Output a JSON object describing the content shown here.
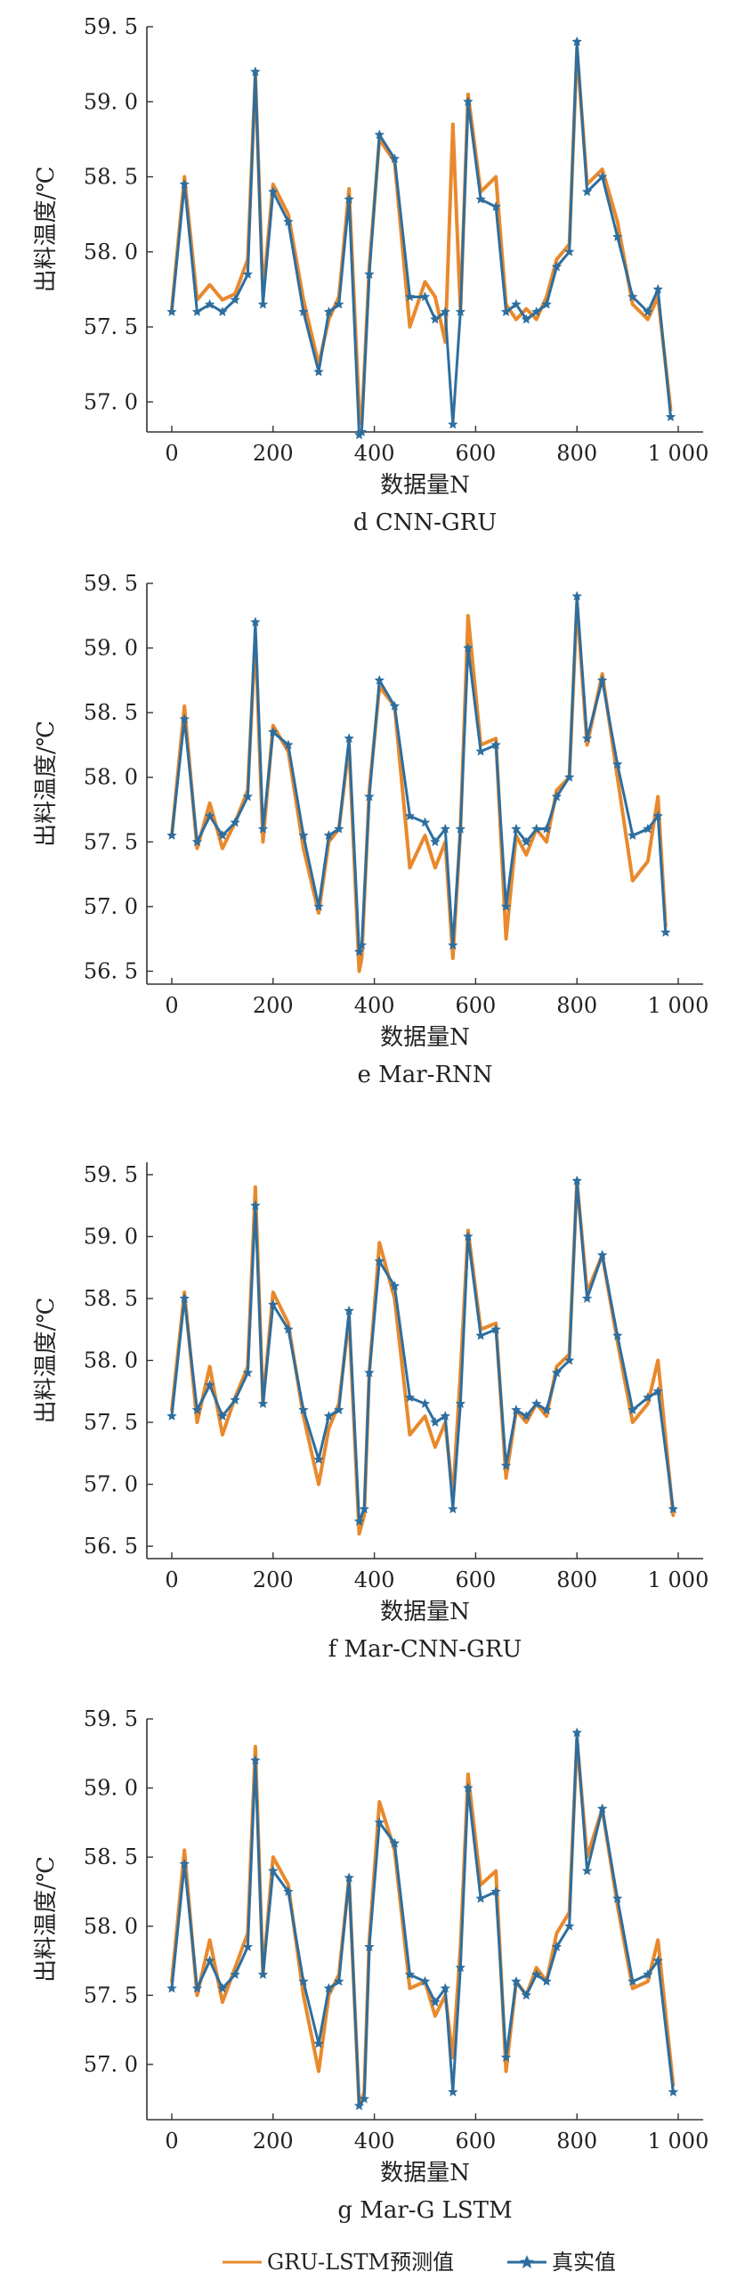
{
  "colors": {
    "predicted": "#E8892C",
    "actual": "#2E6E9E",
    "axis": "#333333",
    "text": "#222222"
  },
  "legend": {
    "predicted_label": "GRU-LSTM预测值",
    "actual_label": "真实值"
  },
  "chart_data": [
    {
      "type": "line",
      "caption": "d  CNN-GRU",
      "xlabel": "数据量N",
      "ylabel": "出料温度/℃",
      "xlim": [
        0,
        1000
      ],
      "ylim": [
        56.8,
        59.5
      ],
      "xticks": [
        0,
        200,
        400,
        600,
        800,
        1000
      ],
      "xtick_labels": [
        "0",
        "200",
        "400",
        "600",
        "800",
        "1 000"
      ],
      "yticks": [
        57.0,
        57.5,
        58.0,
        58.5,
        59.0,
        59.5
      ],
      "ytick_labels": [
        "57. 0",
        "57. 5",
        "58. 0",
        "58. 5",
        "59. 0",
        "59. 5"
      ],
      "x": [
        0,
        25,
        50,
        75,
        100,
        125,
        150,
        165,
        180,
        200,
        230,
        260,
        290,
        310,
        330,
        350,
        370,
        375,
        390,
        410,
        440,
        470,
        500,
        520,
        540,
        555,
        570,
        585,
        610,
        640,
        660,
        680,
        700,
        720,
        740,
        760,
        785,
        800,
        820,
        850,
        880,
        910,
        940,
        960,
        985
      ],
      "series": [
        {
          "name": "GRU-LSTM预测值",
          "role": "predicted",
          "values": [
            57.62,
            58.5,
            57.68,
            57.78,
            57.68,
            57.72,
            57.95,
            59.18,
            57.72,
            58.45,
            58.25,
            57.68,
            57.25,
            57.55,
            57.7,
            58.42,
            56.95,
            56.85,
            57.9,
            58.75,
            58.6,
            57.5,
            57.8,
            57.7,
            57.4,
            58.85,
            57.6,
            59.05,
            58.4,
            58.5,
            57.65,
            57.55,
            57.62,
            57.55,
            57.7,
            57.95,
            58.05,
            59.35,
            58.45,
            58.55,
            58.2,
            57.65,
            57.55,
            57.7,
            56.95
          ]
        },
        {
          "name": "真实值",
          "role": "actual",
          "values": [
            57.6,
            58.45,
            57.6,
            57.65,
            57.6,
            57.68,
            57.85,
            59.2,
            57.65,
            58.4,
            58.2,
            57.6,
            57.2,
            57.6,
            57.65,
            58.35,
            56.78,
            56.8,
            57.85,
            58.78,
            58.62,
            57.7,
            57.7,
            57.55,
            57.6,
            56.85,
            57.6,
            59.0,
            58.35,
            58.3,
            57.6,
            57.65,
            57.55,
            57.6,
            57.65,
            57.9,
            58.0,
            59.4,
            58.4,
            58.5,
            58.1,
            57.7,
            57.6,
            57.75,
            56.9
          ]
        }
      ]
    },
    {
      "type": "line",
      "caption": "e  Mar-RNN",
      "xlabel": "数据量N",
      "ylabel": "出料温度/℃",
      "xlim": [
        0,
        1000
      ],
      "ylim": [
        56.4,
        59.5
      ],
      "xticks": [
        0,
        200,
        400,
        600,
        800,
        1000
      ],
      "xtick_labels": [
        "0",
        "200",
        "400",
        "600",
        "800",
        "1 000"
      ],
      "yticks": [
        56.5,
        57.0,
        57.5,
        58.0,
        58.5,
        59.0,
        59.5
      ],
      "ytick_labels": [
        "56. 5",
        "57. 0",
        "57. 5",
        "58. 0",
        "58. 5",
        "59. 0",
        "59. 5"
      ],
      "x": [
        0,
        25,
        50,
        75,
        100,
        125,
        150,
        165,
        180,
        200,
        230,
        260,
        290,
        310,
        330,
        350,
        370,
        375,
        390,
        410,
        440,
        470,
        500,
        520,
        540,
        555,
        570,
        585,
        610,
        640,
        660,
        680,
        700,
        720,
        740,
        760,
        785,
        800,
        820,
        850,
        880,
        910,
        940,
        960,
        975
      ],
      "series": [
        {
          "name": "GRU-LSTM预测值",
          "role": "predicted",
          "values": [
            57.55,
            58.55,
            57.45,
            57.8,
            57.45,
            57.65,
            57.9,
            59.1,
            57.5,
            58.4,
            58.2,
            57.45,
            56.95,
            57.5,
            57.6,
            58.25,
            56.5,
            56.6,
            57.9,
            58.7,
            58.55,
            57.3,
            57.55,
            57.3,
            57.5,
            56.6,
            57.6,
            59.25,
            58.25,
            58.3,
            56.75,
            57.55,
            57.4,
            57.6,
            57.5,
            57.9,
            58.0,
            59.35,
            58.25,
            58.8,
            58.0,
            57.2,
            57.35,
            57.85,
            56.85
          ]
        },
        {
          "name": "真实值",
          "role": "actual",
          "values": [
            57.55,
            58.45,
            57.5,
            57.7,
            57.55,
            57.65,
            57.85,
            59.2,
            57.6,
            58.35,
            58.25,
            57.55,
            57.0,
            57.55,
            57.6,
            58.3,
            56.65,
            56.7,
            57.85,
            58.75,
            58.55,
            57.7,
            57.65,
            57.5,
            57.6,
            56.7,
            57.6,
            59.0,
            58.2,
            58.25,
            57.0,
            57.6,
            57.5,
            57.6,
            57.6,
            57.85,
            58.0,
            59.4,
            58.3,
            58.75,
            58.1,
            57.55,
            57.6,
            57.7,
            56.8
          ]
        }
      ]
    },
    {
      "type": "line",
      "caption": "f  Mar-CNN-GRU",
      "xlabel": "数据量N",
      "ylabel": "出料温度/℃",
      "xlim": [
        0,
        1000
      ],
      "ylim": [
        56.4,
        59.6
      ],
      "xticks": [
        0,
        200,
        400,
        600,
        800,
        1000
      ],
      "xtick_labels": [
        "0",
        "200",
        "400",
        "600",
        "800",
        "1 000"
      ],
      "yticks": [
        56.5,
        57.0,
        57.5,
        58.0,
        58.5,
        59.0,
        59.5
      ],
      "ytick_labels": [
        "56. 5",
        "57. 0",
        "57. 5",
        "58. 0",
        "58. 5",
        "59. 0",
        "59. 5"
      ],
      "x": [
        0,
        25,
        50,
        75,
        100,
        125,
        150,
        165,
        180,
        200,
        230,
        260,
        290,
        310,
        330,
        350,
        370,
        380,
        390,
        410,
        440,
        470,
        500,
        520,
        540,
        555,
        570,
        585,
        610,
        640,
        660,
        680,
        700,
        720,
        740,
        760,
        785,
        800,
        820,
        850,
        880,
        910,
        940,
        960,
        990
      ],
      "series": [
        {
          "name": "GRU-LSTM预测值",
          "role": "predicted",
          "values": [
            57.6,
            58.55,
            57.5,
            57.95,
            57.4,
            57.7,
            57.95,
            59.4,
            57.65,
            58.55,
            58.3,
            57.55,
            57.0,
            57.45,
            57.65,
            58.35,
            56.6,
            56.75,
            57.9,
            58.95,
            58.5,
            57.4,
            57.55,
            57.3,
            57.5,
            56.9,
            57.9,
            59.05,
            58.25,
            58.3,
            57.05,
            57.6,
            57.5,
            57.65,
            57.55,
            57.95,
            58.05,
            59.45,
            58.55,
            58.85,
            58.15,
            57.5,
            57.65,
            58.0,
            56.75
          ]
        },
        {
          "name": "真实值",
          "role": "actual",
          "values": [
            57.55,
            58.5,
            57.6,
            57.8,
            57.55,
            57.68,
            57.9,
            59.25,
            57.65,
            58.45,
            58.25,
            57.6,
            57.2,
            57.55,
            57.6,
            58.4,
            56.7,
            56.8,
            57.9,
            58.8,
            58.6,
            57.7,
            57.65,
            57.5,
            57.55,
            56.8,
            57.65,
            59.0,
            58.2,
            58.25,
            57.15,
            57.6,
            57.55,
            57.65,
            57.6,
            57.9,
            58.0,
            59.45,
            58.5,
            58.85,
            58.2,
            57.6,
            57.7,
            57.75,
            56.8
          ]
        }
      ]
    },
    {
      "type": "line",
      "caption": "g  Mar-G LSTM",
      "xlabel": "数据量N",
      "ylabel": "出料温度/℃",
      "xlim": [
        0,
        1000
      ],
      "ylim": [
        56.6,
        59.5
      ],
      "xticks": [
        0,
        200,
        400,
        600,
        800,
        1000
      ],
      "xtick_labels": [
        "0",
        "200",
        "400",
        "600",
        "800",
        "1 000"
      ],
      "yticks": [
        57.0,
        57.5,
        58.0,
        58.5,
        59.0,
        59.5
      ],
      "ytick_labels": [
        "57. 0",
        "57. 5",
        "58. 0",
        "58. 5",
        "59. 0",
        "59. 5"
      ],
      "x": [
        0,
        25,
        50,
        75,
        100,
        125,
        150,
        165,
        180,
        200,
        230,
        260,
        290,
        310,
        330,
        350,
        370,
        380,
        390,
        410,
        440,
        470,
        500,
        520,
        540,
        555,
        570,
        585,
        610,
        640,
        660,
        680,
        700,
        720,
        740,
        760,
        785,
        800,
        820,
        850,
        880,
        910,
        940,
        960,
        990
      ],
      "series": [
        {
          "name": "GRU-LSTM预测值",
          "role": "predicted",
          "values": [
            57.6,
            58.55,
            57.5,
            57.9,
            57.45,
            57.7,
            57.95,
            59.3,
            57.65,
            58.5,
            58.3,
            57.5,
            56.95,
            57.5,
            57.65,
            58.35,
            56.7,
            56.8,
            57.9,
            58.9,
            58.55,
            57.55,
            57.6,
            57.35,
            57.5,
            57.05,
            57.85,
            59.1,
            58.3,
            58.4,
            56.95,
            57.6,
            57.5,
            57.7,
            57.6,
            57.95,
            58.1,
            59.35,
            58.5,
            58.85,
            58.15,
            57.55,
            57.6,
            57.9,
            56.85
          ]
        },
        {
          "name": "真实值",
          "role": "actual",
          "values": [
            57.55,
            58.45,
            57.55,
            57.75,
            57.55,
            57.65,
            57.85,
            59.2,
            57.65,
            58.4,
            58.25,
            57.6,
            57.15,
            57.55,
            57.6,
            58.35,
            56.7,
            56.75,
            57.85,
            58.75,
            58.6,
            57.65,
            57.6,
            57.45,
            57.55,
            56.8,
            57.7,
            59.0,
            58.2,
            58.25,
            57.05,
            57.6,
            57.5,
            57.65,
            57.6,
            57.85,
            58.0,
            59.4,
            58.4,
            58.85,
            58.2,
            57.6,
            57.65,
            57.75,
            56.8
          ]
        }
      ]
    }
  ]
}
